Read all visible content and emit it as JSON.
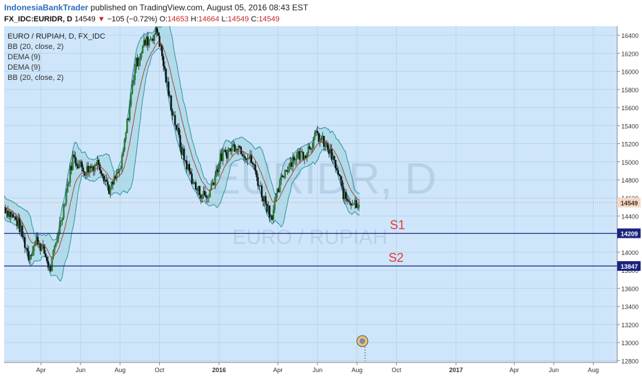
{
  "header": {
    "user": "IndonesiaBankTrader",
    "published": "published on TradingView.com, August 05, 2016 08:43 EST",
    "symbol": "FX_IDC:EURIDR, D",
    "last": "14549",
    "arrow": "▼",
    "change": "−105 (−0.72%)",
    "o_label": "O:",
    "o_value": "14653",
    "h_label": "H:",
    "h_value": "14664",
    "l_label": "L:",
    "l_value": "14549",
    "c_label": "C:",
    "c_value": "14549"
  },
  "legend": {
    "title": "EURO / RUPIAH, D, FX_IDC",
    "items": [
      "BB (20, close, 2)",
      "DEMA (9)",
      "DEMA (9)",
      "BB (20, close, 2)"
    ]
  },
  "watermark": {
    "big": "EURIDR, D",
    "small": "EURO / RUPIAH"
  },
  "colors": {
    "plot_bg": "#cfe6fa",
    "band_fill": "#9fd3e0",
    "band_line": "#2e8fa3",
    "ma_line": "#a0473a",
    "candle_up": "#2e7d32",
    "candle_down": "#111111",
    "level_line": "#1a237e",
    "level_text": "#e53935",
    "price_tag_bg": "#f5d8c3",
    "level_tag_bg": "#1a237e"
  },
  "chart_data": {
    "type": "line",
    "y_ticks": [
      12800,
      13000,
      13200,
      13400,
      13600,
      13800,
      14000,
      14200,
      14400,
      14600,
      14800,
      15000,
      15200,
      15400,
      15600,
      15800,
      16000,
      16200,
      16400
    ],
    "ylim": [
      12780,
      16500
    ],
    "x_ticks": [
      {
        "label": "Apr",
        "date": "2015-04-01"
      },
      {
        "label": "Jun",
        "date": "2015-06-01"
      },
      {
        "label": "Aug",
        "date": "2015-08-01"
      },
      {
        "label": "Oct",
        "date": "2015-10-01"
      },
      {
        "label": "2016",
        "date": "2016-01-01"
      },
      {
        "label": "Apr",
        "date": "2016-04-01"
      },
      {
        "label": "Jun",
        "date": "2016-06-01"
      },
      {
        "label": "Aug",
        "date": "2016-08-01"
      },
      {
        "label": "Oct",
        "date": "2016-10-01"
      },
      {
        "label": "2017",
        "date": "2017-01-01"
      },
      {
        "label": "Apr",
        "date": "2017-04-01"
      },
      {
        "label": "Jun",
        "date": "2017-06-01"
      },
      {
        "label": "Aug",
        "date": "2017-08-01"
      }
    ],
    "xlim": [
      "2015-02-03",
      "2017-09-07"
    ],
    "close_series": [
      {
        "date": "2015-02-03",
        "value": 14500
      },
      {
        "date": "2015-02-25",
        "value": 14320
      },
      {
        "date": "2015-03-13",
        "value": 13960
      },
      {
        "date": "2015-03-26",
        "value": 14150
      },
      {
        "date": "2015-04-07",
        "value": 13980
      },
      {
        "date": "2015-04-15",
        "value": 13790
      },
      {
        "date": "2015-05-06",
        "value": 14520
      },
      {
        "date": "2015-05-20",
        "value": 15050
      },
      {
        "date": "2015-06-08",
        "value": 14900
      },
      {
        "date": "2015-06-29",
        "value": 15000
      },
      {
        "date": "2015-07-16",
        "value": 14680
      },
      {
        "date": "2015-08-03",
        "value": 14950
      },
      {
        "date": "2015-08-24",
        "value": 16050
      },
      {
        "date": "2015-09-07",
        "value": 16300
      },
      {
        "date": "2015-09-28",
        "value": 16450
      },
      {
        "date": "2015-10-15",
        "value": 15750
      },
      {
        "date": "2015-11-05",
        "value": 15100
      },
      {
        "date": "2015-11-26",
        "value": 14700
      },
      {
        "date": "2015-12-14",
        "value": 14600
      },
      {
        "date": "2016-01-04",
        "value": 15050
      },
      {
        "date": "2016-01-28",
        "value": 15200
      },
      {
        "date": "2016-02-21",
        "value": 15000
      },
      {
        "date": "2016-03-07",
        "value": 14650
      },
      {
        "date": "2016-03-22",
        "value": 14400
      },
      {
        "date": "2016-04-08",
        "value": 14850
      },
      {
        "date": "2016-04-25",
        "value": 15050
      },
      {
        "date": "2016-05-13",
        "value": 15100
      },
      {
        "date": "2016-05-31",
        "value": 15300
      },
      {
        "date": "2016-06-17",
        "value": 15150
      },
      {
        "date": "2016-06-29",
        "value": 14950
      },
      {
        "date": "2016-07-13",
        "value": 14600
      },
      {
        "date": "2016-07-28",
        "value": 14550
      },
      {
        "date": "2016-08-05",
        "value": 14549
      }
    ],
    "levels": [
      {
        "label": "S1",
        "value": 14209
      },
      {
        "label": "S2",
        "value": 13847
      }
    ],
    "current_price": 14549,
    "price_tags": [
      {
        "text": "14549",
        "value": 14549
      },
      {
        "text": "14209",
        "value": 14209
      },
      {
        "text": "13847",
        "value": 13847
      }
    ]
  }
}
